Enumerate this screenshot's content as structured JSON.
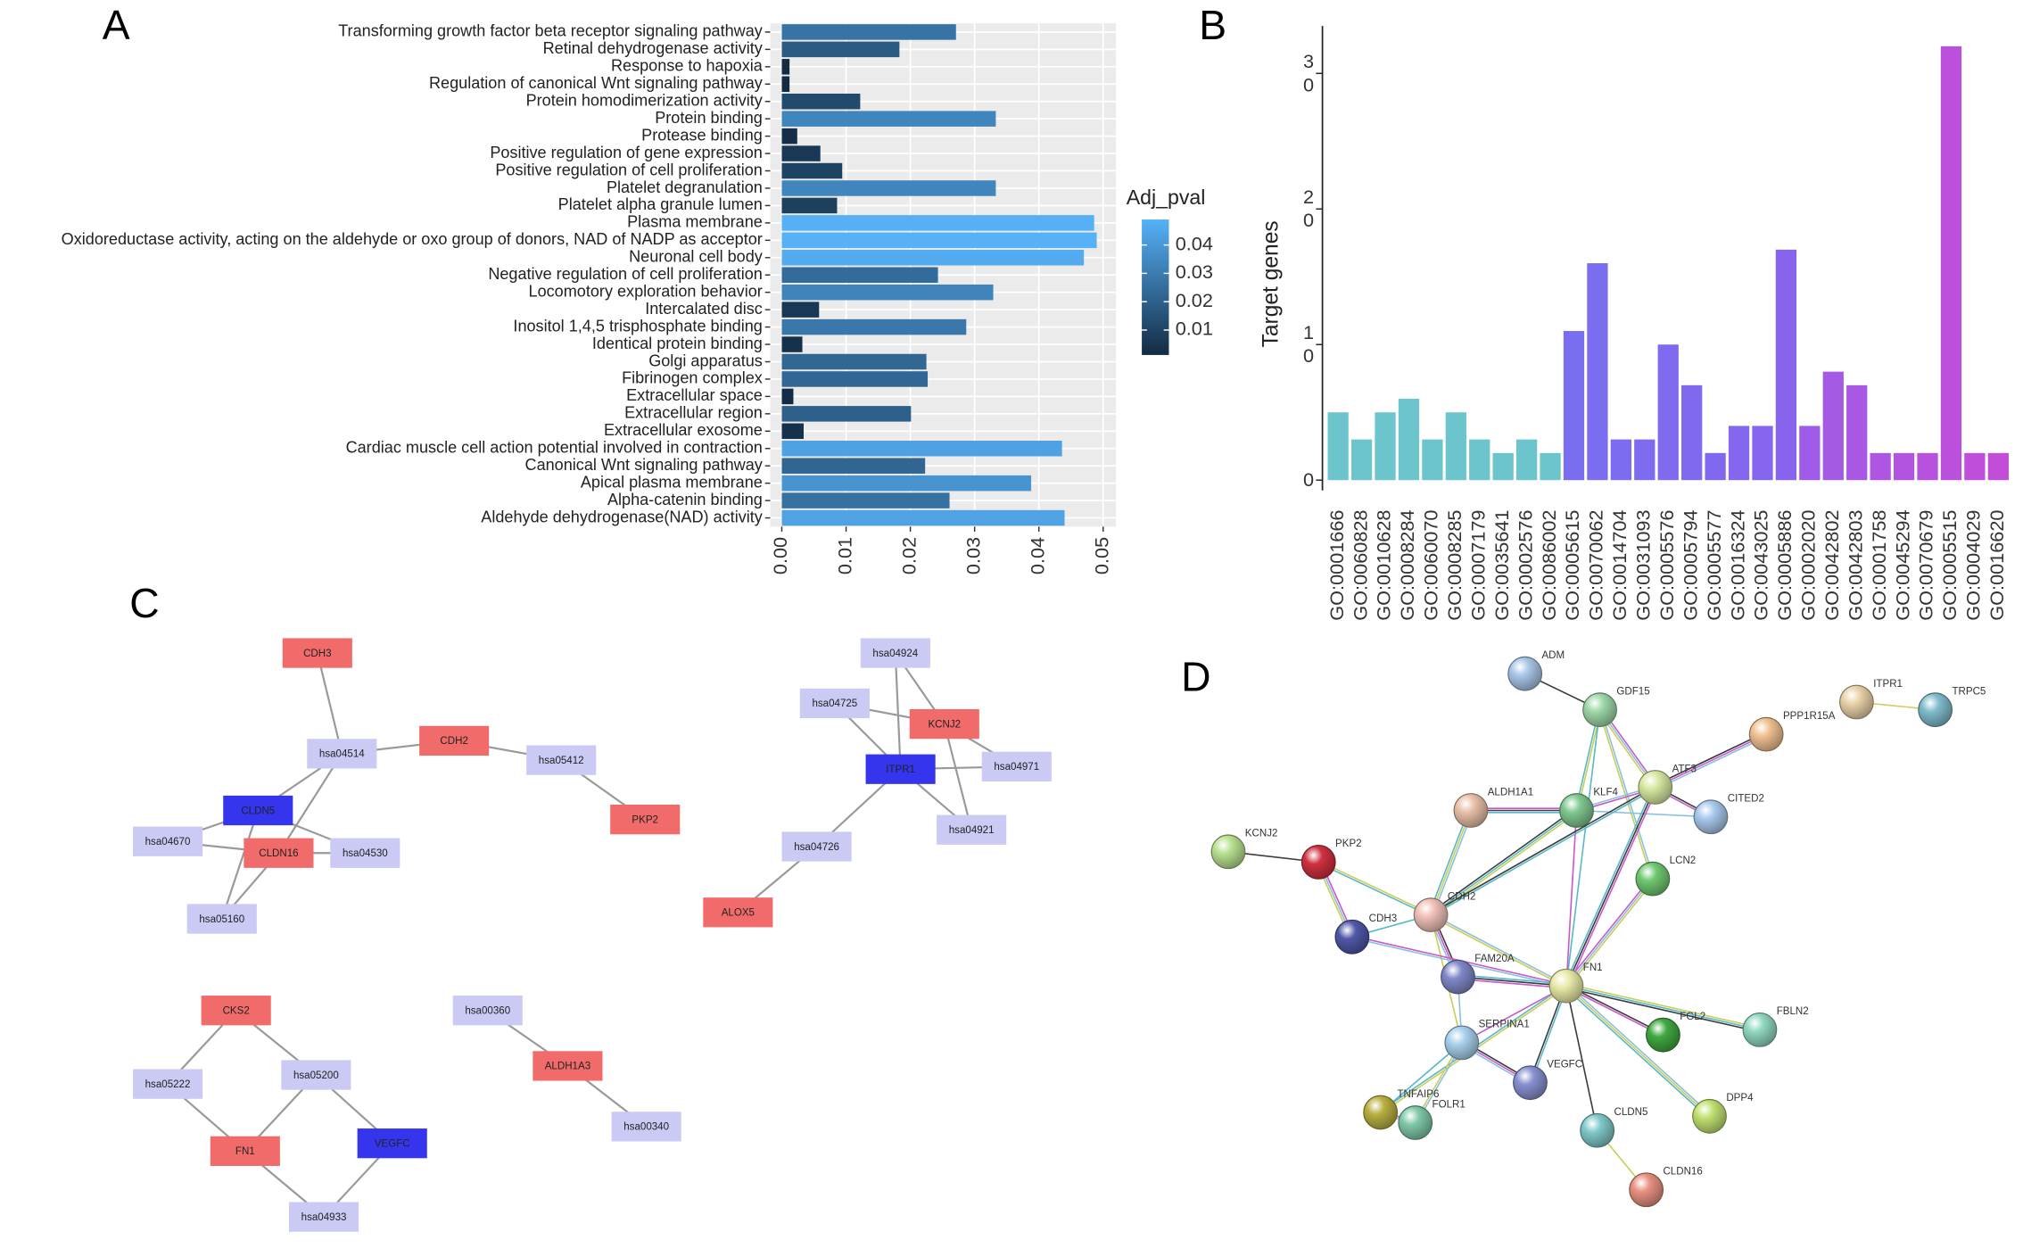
{
  "panel_labels": [
    "A",
    "B",
    "C",
    "D"
  ],
  "chart_data": [
    {
      "type": "barh",
      "categories": [
        "Transforming growth factor beta receptor signaling pathway",
        "Retinal dehydrogenase activity",
        "Response to hapoxia",
        "Regulation of canonical Wnt signaling pathway",
        "Protein homodimerization activity",
        "Protein binding",
        "Protease binding",
        "Positive regulation of gene expression",
        "Positive regulation of cell proliferation",
        "Platelet degranulation",
        "Platelet alpha granule lumen",
        "Plasma membrane",
        "Oxidoreductase activity, acting on the aldehyde or oxo group of donors, NAD of NADP as acceptor",
        "Neuronal cell body",
        "Negative regulation of cell proliferation",
        "Locomotory exploration behavior",
        "Intercalated disc",
        "Inositol 1,4,5 trisphosphate binding",
        "Identical protein binding",
        "Golgi apparatus",
        "Fibrinogen complex",
        "Extracellular space",
        "Extracellular region",
        "Extracellular exosome",
        "Cardiac muscle cell action potential involved in contraction",
        "Canonical Wnt signaling pathway",
        "Apical plasma membrane",
        "Alpha-catenin binding",
        "Aldehyde dehydrogenase(NAD) activity"
      ],
      "values": [
        0.0271,
        0.0183,
        0.0012,
        0.0012,
        0.0122,
        0.0333,
        0.0024,
        0.006,
        0.0094,
        0.0333,
        0.0086,
        0.0486,
        0.049,
        0.047,
        0.0243,
        0.0329,
        0.0058,
        0.0287,
        0.0032,
        0.0225,
        0.0227,
        0.0018,
        0.0201,
        0.0034,
        0.0436,
        0.0223,
        0.0388,
        0.0261,
        0.044
      ],
      "xlim": [
        -0.0018,
        0.052
      ],
      "xticks": [
        {
          "value": 0,
          "label": "0.00"
        },
        0.01,
        0.02,
        0.03,
        0.04,
        0.05
      ],
      "grid": true,
      "colorbar": {
        "title": "Adj_pval",
        "lim": [
          0.0012,
          0.049
        ],
        "ticks": [
          0.01,
          0.02,
          0.03,
          0.04
        ],
        "low": "#132b43",
        "high": "#56b1f7"
      }
    },
    {
      "type": "bar",
      "ylabel": "Target genes",
      "categories": [
        "GO:0001666",
        "GO:0060828",
        "GO:0010628",
        "GO:0008284",
        "GO:0060070",
        "GO:0008285",
        "GO:0007179",
        "GO:0035641",
        "GO:0002576",
        "GO:0086002",
        "GO:0005615",
        "GO:0070062",
        "GO:0014704",
        "GO:0031093",
        "GO:0005576",
        "GO:0005794",
        "GO:0005577",
        "GO:0016324",
        "GO:0043025",
        "GO:0005886",
        "GO:0002020",
        "GO:0042802",
        "GO:0042803",
        "GO:0001758",
        "GO:0045294",
        "GO:0070679",
        "GO:0005515",
        "GO:0004029",
        "GO:0016620"
      ],
      "values": [
        5,
        3,
        5,
        6,
        3,
        5,
        3,
        2,
        3,
        2,
        11,
        16,
        3,
        3,
        10,
        7,
        2,
        4,
        4,
        17,
        4,
        8,
        7,
        2,
        2,
        2,
        32,
        2,
        2
      ],
      "colors": [
        "#6cc4cc",
        "#6cc4cc",
        "#6cc4cc",
        "#6cc4cc",
        "#6cc4cc",
        "#6cc4cc",
        "#6cc4cc",
        "#6cc4cc",
        "#6cc4cc",
        "#6cc4cc",
        "#7a6ef0",
        "#7b6df0",
        "#7c6cf0",
        "#7d6bf0",
        "#7f6af0",
        "#8069ef",
        "#8268ef",
        "#8467ee",
        "#8666ee",
        "#8864ee",
        "#a05ce8",
        "#a55ae6",
        "#a958e4",
        "#ae56e2",
        "#b254e0",
        "#b652de",
        "#bb50dc",
        "#bf4fda",
        "#c24ed8"
      ],
      "ylim": [
        0,
        33.5
      ],
      "yticks": [
        0,
        10,
        20,
        30
      ]
    }
  ],
  "networks": [
    {
      "nodes": [
        {
          "label": "CDH3",
          "color": "#f26b6b"
        },
        {
          "label": "hsa04514",
          "color": "#cacaf4"
        },
        {
          "label": "CDH2",
          "color": "#f26b6b"
        },
        {
          "label": "hsa05412",
          "color": "#cacaf4"
        },
        {
          "label": "PKP2",
          "color": "#f26b6b"
        },
        {
          "label": "CLDN5",
          "color": "#3535ee"
        },
        {
          "label": "hsa04670",
          "color": "#cacaf4"
        },
        {
          "label": "CLDN16",
          "color": "#f26b6b"
        },
        {
          "label": "hsa04530",
          "color": "#cacaf4"
        },
        {
          "label": "hsa05160",
          "color": "#cacaf4"
        },
        {
          "label": "hsa04924",
          "color": "#cacaf4"
        },
        {
          "label": "hsa04725",
          "color": "#cacaf4"
        },
        {
          "label": "KCNJ2",
          "color": "#f26b6b"
        },
        {
          "label": "ITPR1",
          "color": "#3535ee"
        },
        {
          "label": "hsa04971",
          "color": "#cacaf4"
        },
        {
          "label": "hsa04921",
          "color": "#cacaf4"
        },
        {
          "label": "hsa04726",
          "color": "#cacaf4"
        },
        {
          "label": "ALOX5",
          "color": "#f26b6b"
        },
        {
          "label": "CKS2",
          "color": "#f26b6b"
        },
        {
          "label": "hsa05222",
          "color": "#cacaf4"
        },
        {
          "label": "hsa05200",
          "color": "#cacaf4"
        },
        {
          "label": "FN1",
          "color": "#f26b6b"
        },
        {
          "label": "VEGFC",
          "color": "#3535ee"
        },
        {
          "label": "hsa04933",
          "color": "#cacaf4"
        },
        {
          "label": "hsa00360",
          "color": "#cacaf4"
        },
        {
          "label": "ALDH1A3",
          "color": "#f26b6b"
        },
        {
          "label": "hsa00340",
          "color": "#cacaf4"
        }
      ]
    },
    {
      "nodes": [
        {
          "label": "ADM",
          "color": "#a9c6e8"
        },
        {
          "label": "GDF15",
          "color": "#9ed8a8"
        },
        {
          "label": "ITPR1",
          "color": "#e8d2a8"
        },
        {
          "label": "TRPC5",
          "color": "#7fbccc"
        },
        {
          "label": "PPP1R15A",
          "color": "#f0c090"
        },
        {
          "label": "ATF3",
          "color": "#d6e8a0"
        },
        {
          "label": "ALDH1A1",
          "color": "#e8c0a8"
        },
        {
          "label": "KLF4",
          "color": "#80c890"
        },
        {
          "label": "CITED2",
          "color": "#a8c8ec"
        },
        {
          "label": "KCNJ2",
          "color": "#b8e090"
        },
        {
          "label": "PKP2",
          "color": "#d03040"
        },
        {
          "label": "LCN2",
          "color": "#70c870"
        },
        {
          "label": "CDH2",
          "color": "#f0c0b8"
        },
        {
          "label": "CDH3",
          "color": "#5058a8"
        },
        {
          "label": "FAM20A",
          "color": "#8088c8"
        },
        {
          "label": "FN1",
          "color": "#e8eaa8"
        },
        {
          "label": "FGL2",
          "color": "#40a840"
        },
        {
          "label": "FBLN2",
          "color": "#90d8c0"
        },
        {
          "label": "SERPINA1",
          "color": "#a8d0ec"
        },
        {
          "label": "VEGFC",
          "color": "#8890d0"
        },
        {
          "label": "TNFAIP6",
          "color": "#b8b040"
        },
        {
          "label": "FOLR1",
          "color": "#80c8a8"
        },
        {
          "label": "DPP4",
          "color": "#c0e070"
        },
        {
          "label": "CLDN5",
          "color": "#80c8c8"
        },
        {
          "label": "CLDN16",
          "color": "#e89080"
        }
      ]
    }
  ]
}
